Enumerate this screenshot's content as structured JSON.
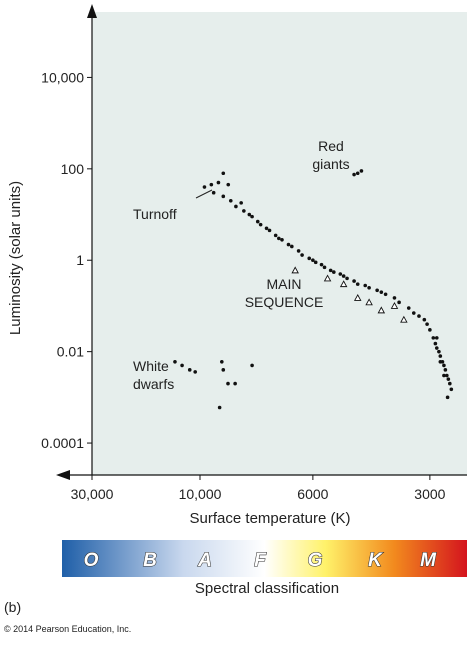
{
  "chart_data": {
    "type": "scatter",
    "x_label": "Surface temperature (K)",
    "y_label": "Luminosity (solar units)",
    "xlim": [
      30000,
      2500
    ],
    "ylim": [
      2e-05,
      270000
    ],
    "x_scale": "log",
    "y_scale": "log",
    "xticks": [
      {
        "value": 30000,
        "label": "30,000"
      },
      {
        "value": 10000,
        "label": "10,000"
      },
      6000,
      3000
    ],
    "yticks": [
      {
        "value": 10000,
        "label": "10,000"
      },
      100,
      1,
      0.01,
      0.0001
    ],
    "series": [
      {
        "marker": "dot",
        "color": "#111111",
        "x": [
          9800,
          9500,
          9200,
          9000,
          8800,
          9400,
          9000,
          8700,
          8500,
          8300,
          8200,
          8000,
          7900,
          7700,
          7600,
          7400,
          7300,
          7100,
          7000,
          6900,
          6700,
          6600,
          6400,
          6300,
          6100,
          6000,
          5900,
          5700,
          5600,
          5400,
          5300,
          5100,
          5000,
          4900,
          4700,
          4600,
          4400,
          4300,
          4100,
          4000,
          3900,
          3700,
          3600,
          3400,
          3300,
          3200,
          3100,
          3050,
          3000,
          2950,
          2920,
          2900,
          2870,
          2850,
          2820,
          2800,
          2780,
          2760,
          2740,
          2720,
          2700,
          2900,
          2850,
          2800,
          2750,
          4700,
          4600,
          4500,
          12900,
          12000,
          11100,
          10500,
          9060,
          9000,
          8810,
          8530,
          7900,
          9150
        ],
        "y": [
          40,
          45,
          50,
          80,
          45,
          30,
          25,
          20,
          15,
          18,
          12,
          10,
          9,
          7,
          6,
          5,
          4.5,
          3.5,
          3,
          2.8,
          2.2,
          2,
          1.6,
          1.3,
          1.1,
          1,
          0.9,
          0.8,
          0.7,
          0.6,
          0.55,
          0.5,
          0.45,
          0.4,
          0.35,
          0.3,
          0.28,
          0.25,
          0.22,
          0.2,
          0.18,
          0.15,
          0.12,
          0.09,
          0.07,
          0.06,
          0.05,
          0.04,
          0.03,
          0.02,
          0.015,
          0.012,
          0.01,
          0.008,
          0.006,
          0.005,
          0.004,
          0.003,
          0.0025,
          0.002,
          0.0015,
          0.02,
          0.006,
          0.003,
          0.001,
          75,
          80,
          90,
          0.006,
          0.005,
          0.004,
          0.0036,
          0.006,
          0.004,
          0.002,
          0.002,
          0.005,
          0.0006
        ]
      },
      {
        "marker": "triangle",
        "color": "#111111",
        "x": [
          6500,
          5500,
          5000,
          4600,
          4300,
          4000,
          3700,
          3500
        ],
        "y": [
          0.6,
          0.4,
          0.3,
          0.15,
          0.12,
          0.08,
          0.1,
          0.05
        ]
      }
    ],
    "annotations": [
      {
        "lines": [
          "Red",
          "giants"
        ]
      },
      {
        "lines": [
          "Turnoff"
        ]
      },
      {
        "lines": [
          "MAIN",
          "SEQUENCE"
        ]
      },
      {
        "lines": [
          "White",
          "dwarfs"
        ]
      }
    ],
    "spectral_classes": [
      "O",
      "B",
      "A",
      "F",
      "G",
      "K",
      "M"
    ],
    "spectral_label": "Spectral classification",
    "panel_label": "(b)",
    "copyright": "© 2014 Pearson Education, Inc."
  }
}
